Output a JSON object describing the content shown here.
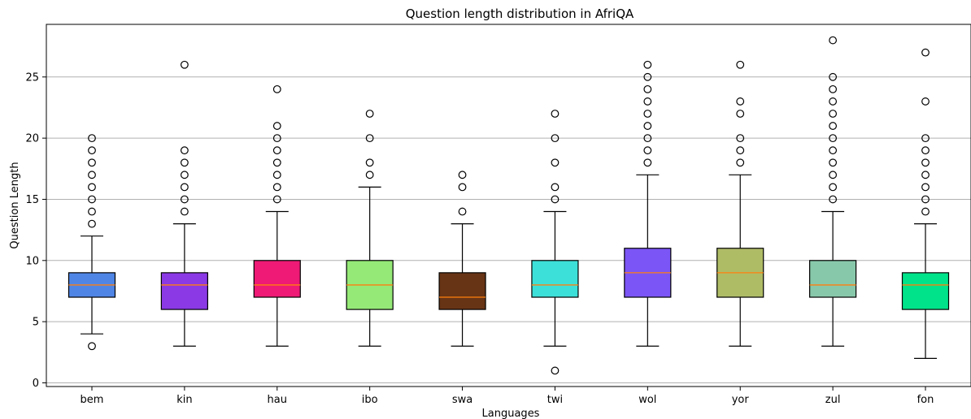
{
  "chart_data": {
    "type": "box",
    "title": "Question length distribution in AfriQA",
    "xlabel": "Languages",
    "ylabel": "Question Length",
    "ylim": [
      -0.3,
      29.3
    ],
    "yticks": [
      0,
      5,
      10,
      15,
      20,
      25
    ],
    "grid": "y",
    "categories": [
      "bem",
      "kin",
      "hau",
      "ibo",
      "swa",
      "twi",
      "wol",
      "yor",
      "zul",
      "fon"
    ],
    "box_colors": [
      "#4f86e5",
      "#8a39e5",
      "#ee1a75",
      "#95e977",
      "#673415",
      "#3de0d8",
      "#7b55f5",
      "#afbc66",
      "#88c8aa",
      "#00e38a"
    ],
    "median_color": "#ff7f0e",
    "boxes": [
      {
        "whisker_low": 4,
        "q1": 7,
        "median": 8,
        "q3": 9,
        "whisker_high": 12,
        "outliers": [
          3,
          13,
          14,
          15,
          16,
          17,
          18,
          19,
          20
        ]
      },
      {
        "whisker_low": 3,
        "q1": 6,
        "median": 8,
        "q3": 9,
        "whisker_high": 13,
        "outliers": [
          14,
          15,
          16,
          17,
          18,
          19,
          26
        ]
      },
      {
        "whisker_low": 3,
        "q1": 7,
        "median": 8,
        "q3": 10,
        "whisker_high": 14,
        "outliers": [
          15,
          16,
          17,
          18,
          19,
          20,
          21,
          24
        ]
      },
      {
        "whisker_low": 3,
        "q1": 6,
        "median": 8,
        "q3": 10,
        "whisker_high": 16,
        "outliers": [
          17,
          18,
          20,
          22
        ]
      },
      {
        "whisker_low": 3,
        "q1": 6,
        "median": 7,
        "q3": 9,
        "whisker_high": 13,
        "outliers": [
          14,
          16,
          17
        ]
      },
      {
        "whisker_low": 3,
        "q1": 7,
        "median": 8,
        "q3": 10,
        "whisker_high": 14,
        "outliers": [
          1,
          15,
          16,
          18,
          20,
          22
        ]
      },
      {
        "whisker_low": 3,
        "q1": 7,
        "median": 9,
        "q3": 11,
        "whisker_high": 17,
        "outliers": [
          18,
          19,
          20,
          21,
          22,
          23,
          24,
          25,
          26
        ]
      },
      {
        "whisker_low": 3,
        "q1": 7,
        "median": 9,
        "q3": 11,
        "whisker_high": 17,
        "outliers": [
          18,
          19,
          20,
          22,
          23,
          26
        ]
      },
      {
        "whisker_low": 3,
        "q1": 7,
        "median": 8,
        "q3": 10,
        "whisker_high": 14,
        "outliers": [
          15,
          16,
          17,
          18,
          19,
          20,
          21,
          22,
          23,
          24,
          25,
          28
        ]
      },
      {
        "whisker_low": 2,
        "q1": 6,
        "median": 8,
        "q3": 9,
        "whisker_high": 13,
        "outliers": [
          14,
          15,
          16,
          17,
          18,
          19,
          20,
          23,
          27
        ]
      }
    ]
  }
}
